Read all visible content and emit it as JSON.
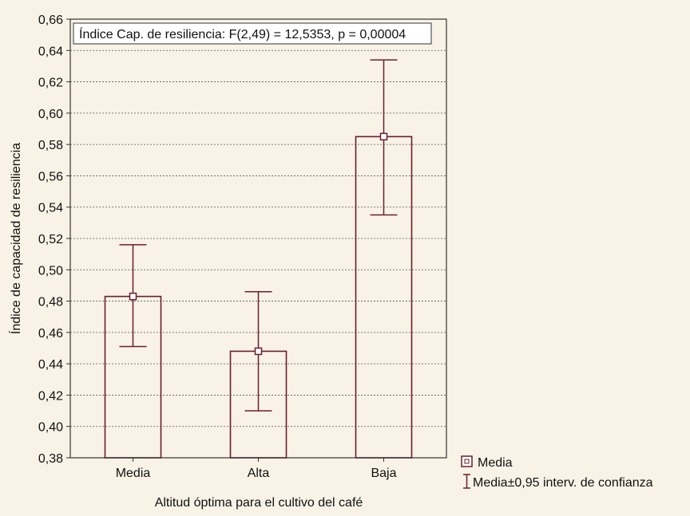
{
  "chart_data": {
    "type": "bar",
    "annotation": "Índice Cap. de resiliencia:  F(2,49) = 12,5353,  p = 0,00004",
    "xlabel": "Altitud óptima para el cultivo del café",
    "ylabel": "Índice de capacidad de resiliencia",
    "categories": [
      "Media",
      "Alta",
      "Baja"
    ],
    "series": [
      {
        "name": "Media",
        "values": [
          0.483,
          0.448,
          0.585
        ],
        "ci_low": [
          0.451,
          0.41,
          0.535
        ],
        "ci_high": [
          0.516,
          0.486,
          0.634
        ]
      }
    ],
    "ylim": [
      0.38,
      0.66
    ],
    "yticks": [
      "0,38",
      "0,40",
      "0,42",
      "0,44",
      "0,46",
      "0,48",
      "0,50",
      "0,52",
      "0,54",
      "0,56",
      "0,58",
      "0,60",
      "0,62",
      "0,64",
      "0,66"
    ],
    "grid": true,
    "legend": {
      "placement": "bottom-right outside",
      "mean_label": "Media",
      "ci_label": "Media±0,95 interv. de confianza"
    },
    "colors": {
      "bar": "#6b1e2e",
      "background": "#f8f3e6",
      "grid": "#555555"
    }
  }
}
